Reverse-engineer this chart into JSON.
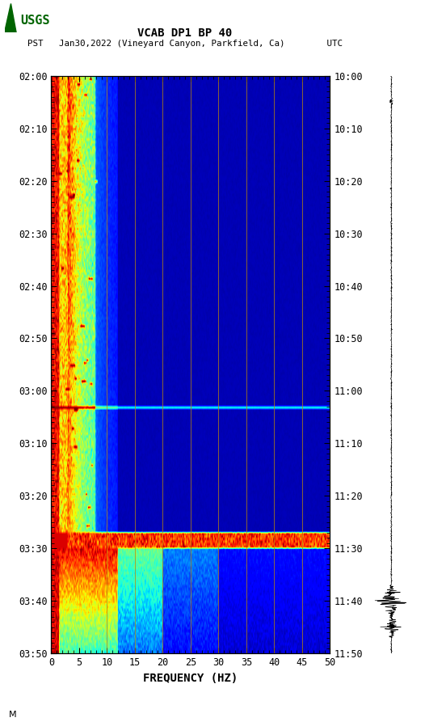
{
  "title_line1": "VCAB DP1 BP 40",
  "title_line2": "PST   Jan30,2022 (Vineyard Canyon, Parkfield, Ca)        UTC",
  "xlabel": "FREQUENCY (HZ)",
  "freq_min": 0,
  "freq_max": 50,
  "freq_ticks": [
    0,
    5,
    10,
    15,
    20,
    25,
    30,
    35,
    40,
    45,
    50
  ],
  "time_tick_labels_left": [
    "02:00",
    "02:10",
    "02:20",
    "02:30",
    "02:40",
    "02:50",
    "03:00",
    "03:10",
    "03:20",
    "03:30",
    "03:40",
    "03:50"
  ],
  "time_tick_labels_right": [
    "10:00",
    "10:10",
    "10:20",
    "10:30",
    "10:40",
    "10:50",
    "11:00",
    "11:10",
    "11:20",
    "11:30",
    "11:40",
    "11:50"
  ],
  "vertical_grid_freqs": [
    10,
    15,
    20,
    25,
    30,
    35,
    40,
    45
  ],
  "grid_color": "#b8860b",
  "fig_bg": "#ffffff",
  "colormap": "jet",
  "n_time_steps": 220,
  "n_freq_steps": 400,
  "dpi": 100,
  "usgs_color": "#006400"
}
